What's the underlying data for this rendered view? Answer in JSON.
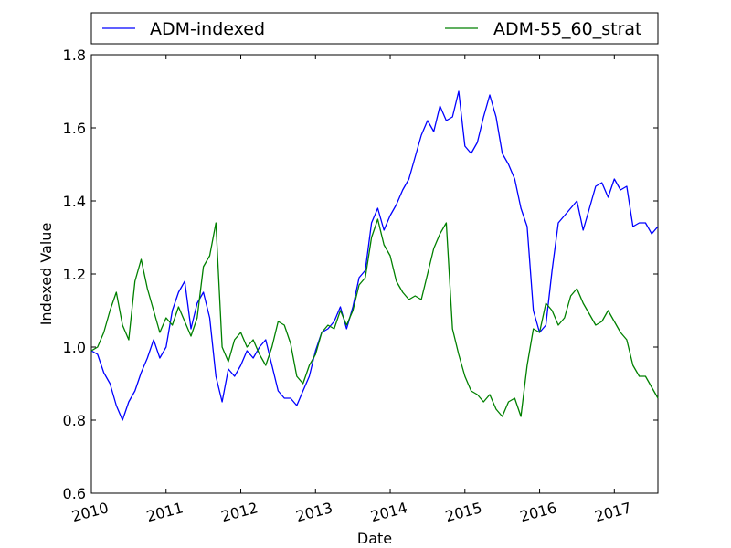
{
  "chart_data": {
    "type": "line",
    "xlabel": "Date",
    "ylabel": "Indexed Value",
    "x_ticks": [
      "2010",
      "2011",
      "2012",
      "2013",
      "2014",
      "2015",
      "2016",
      "2017"
    ],
    "y_ticks": [
      "0.6",
      "0.8",
      "1.0",
      "1.2",
      "1.4",
      "1.6",
      "1.8"
    ],
    "xlim": [
      "2010-01",
      "2017-08"
    ],
    "ylim": [
      0.6,
      1.8
    ],
    "grid": false,
    "legend_position": "top, above plot",
    "series": [
      {
        "name": "ADM-indexed",
        "color": "#0000ff",
        "x": [
          "2010-01",
          "2010-02",
          "2010-03",
          "2010-04",
          "2010-05",
          "2010-06",
          "2010-07",
          "2010-08",
          "2010-09",
          "2010-10",
          "2010-11",
          "2010-12",
          "2011-01",
          "2011-02",
          "2011-03",
          "2011-04",
          "2011-05",
          "2011-06",
          "2011-07",
          "2011-08",
          "2011-09",
          "2011-10",
          "2011-11",
          "2011-12",
          "2012-01",
          "2012-02",
          "2012-03",
          "2012-04",
          "2012-05",
          "2012-06",
          "2012-07",
          "2012-08",
          "2012-09",
          "2012-10",
          "2012-11",
          "2012-12",
          "2013-01",
          "2013-02",
          "2013-03",
          "2013-04",
          "2013-05",
          "2013-06",
          "2013-07",
          "2013-08",
          "2013-09",
          "2013-10",
          "2013-11",
          "2013-12",
          "2014-01",
          "2014-02",
          "2014-03",
          "2014-04",
          "2014-05",
          "2014-06",
          "2014-07",
          "2014-08",
          "2014-09",
          "2014-10",
          "2014-11",
          "2014-12",
          "2015-01",
          "2015-02",
          "2015-03",
          "2015-04",
          "2015-05",
          "2015-06",
          "2015-07",
          "2015-08",
          "2015-09",
          "2015-10",
          "2015-11",
          "2015-12",
          "2016-01",
          "2016-02",
          "2016-03",
          "2016-04",
          "2016-05",
          "2016-06",
          "2016-07",
          "2016-08",
          "2016-09",
          "2016-10",
          "2016-11",
          "2016-12",
          "2017-01",
          "2017-02",
          "2017-03",
          "2017-04",
          "2017-05",
          "2017-06",
          "2017-07",
          "2017-08"
        ],
        "values": [
          0.99,
          0.98,
          0.93,
          0.9,
          0.84,
          0.8,
          0.85,
          0.88,
          0.93,
          0.97,
          1.02,
          0.97,
          1.0,
          1.1,
          1.15,
          1.18,
          1.05,
          1.12,
          1.15,
          1.08,
          0.92,
          0.85,
          0.94,
          0.92,
          0.95,
          0.99,
          0.97,
          1.0,
          1.02,
          0.95,
          0.88,
          0.86,
          0.86,
          0.84,
          0.88,
          0.92,
          0.99,
          1.04,
          1.05,
          1.07,
          1.11,
          1.05,
          1.11,
          1.19,
          1.21,
          1.34,
          1.38,
          1.32,
          1.36,
          1.39,
          1.43,
          1.46,
          1.52,
          1.58,
          1.62,
          1.59,
          1.66,
          1.62,
          1.63,
          1.7,
          1.55,
          1.53,
          1.56,
          1.63,
          1.69,
          1.63,
          1.53,
          1.5,
          1.46,
          1.38,
          1.33,
          1.1,
          1.04,
          1.06,
          1.21,
          1.34,
          1.36,
          1.38,
          1.4,
          1.32,
          1.38,
          1.44,
          1.45,
          1.41,
          1.46,
          1.43,
          1.44,
          1.33,
          1.34,
          1.34,
          1.31,
          1.33
        ]
      },
      {
        "name": "ADM-55_60_strat",
        "color": "#008000",
        "x": [
          "2010-01",
          "2010-02",
          "2010-03",
          "2010-04",
          "2010-05",
          "2010-06",
          "2010-07",
          "2010-08",
          "2010-09",
          "2010-10",
          "2010-11",
          "2010-12",
          "2011-01",
          "2011-02",
          "2011-03",
          "2011-04",
          "2011-05",
          "2011-06",
          "2011-07",
          "2011-08",
          "2011-09",
          "2011-10",
          "2011-11",
          "2011-12",
          "2012-01",
          "2012-02",
          "2012-03",
          "2012-04",
          "2012-05",
          "2012-06",
          "2012-07",
          "2012-08",
          "2012-09",
          "2012-10",
          "2012-11",
          "2012-12",
          "2013-01",
          "2013-02",
          "2013-03",
          "2013-04",
          "2013-05",
          "2013-06",
          "2013-07",
          "2013-08",
          "2013-09",
          "2013-10",
          "2013-11",
          "2013-12",
          "2014-01",
          "2014-02",
          "2014-03",
          "2014-04",
          "2014-05",
          "2014-06",
          "2014-07",
          "2014-08",
          "2014-09",
          "2014-10",
          "2014-11",
          "2014-12",
          "2015-01",
          "2015-02",
          "2015-03",
          "2015-04",
          "2015-05",
          "2015-06",
          "2015-07",
          "2015-08",
          "2015-09",
          "2015-10",
          "2015-11",
          "2015-12",
          "2016-01",
          "2016-02",
          "2016-03",
          "2016-04",
          "2016-05",
          "2016-06",
          "2016-07",
          "2016-08",
          "2016-09",
          "2016-10",
          "2016-11",
          "2016-12",
          "2017-01",
          "2017-02",
          "2017-03",
          "2017-04",
          "2017-05",
          "2017-06",
          "2017-07",
          "2017-08"
        ],
        "values": [
          0.99,
          1.0,
          1.04,
          1.1,
          1.15,
          1.06,
          1.02,
          1.18,
          1.24,
          1.16,
          1.1,
          1.04,
          1.08,
          1.06,
          1.11,
          1.07,
          1.03,
          1.08,
          1.22,
          1.25,
          1.34,
          1.0,
          0.96,
          1.02,
          1.04,
          1.0,
          1.02,
          0.98,
          0.95,
          1.0,
          1.07,
          1.06,
          1.01,
          0.92,
          0.9,
          0.95,
          0.98,
          1.04,
          1.06,
          1.05,
          1.1,
          1.06,
          1.1,
          1.17,
          1.19,
          1.3,
          1.35,
          1.28,
          1.25,
          1.18,
          1.15,
          1.13,
          1.14,
          1.13,
          1.2,
          1.27,
          1.31,
          1.34,
          1.05,
          0.98,
          0.92,
          0.88,
          0.87,
          0.85,
          0.87,
          0.83,
          0.81,
          0.85,
          0.86,
          0.81,
          0.95,
          1.05,
          1.04,
          1.12,
          1.1,
          1.06,
          1.08,
          1.14,
          1.16,
          1.12,
          1.09,
          1.06,
          1.07,
          1.1,
          1.07,
          1.04,
          1.02,
          0.95,
          0.92,
          0.92,
          0.89,
          0.86
        ]
      }
    ]
  }
}
